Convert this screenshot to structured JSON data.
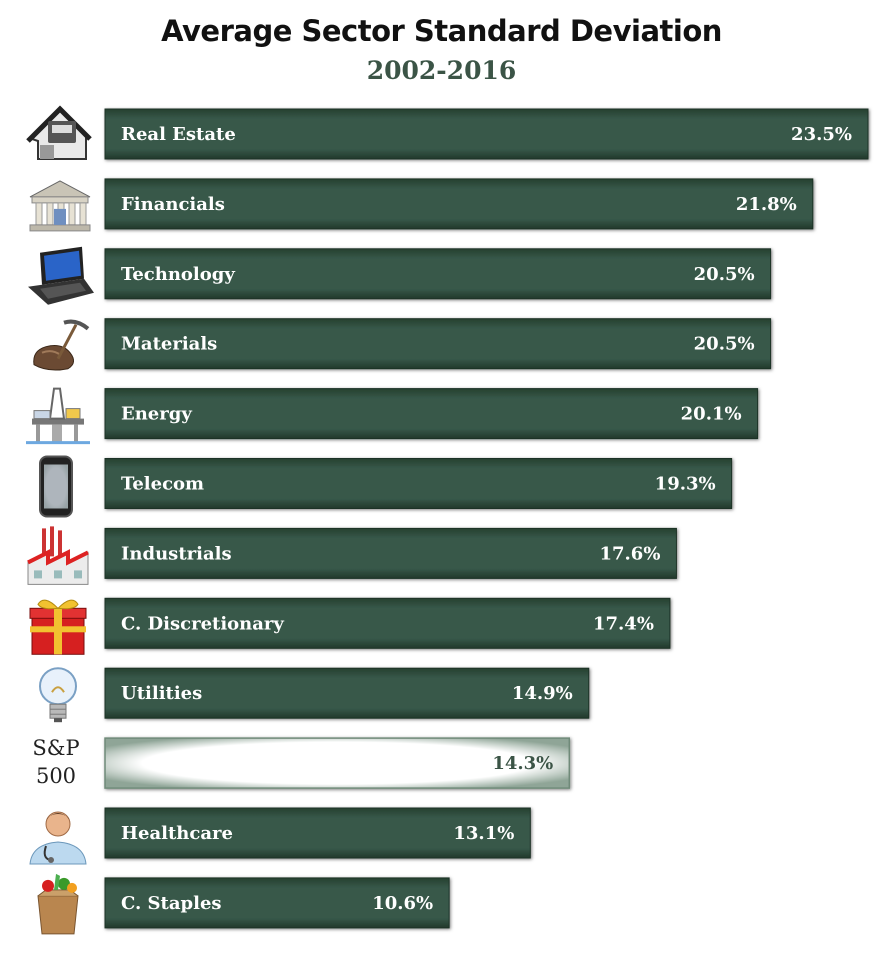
{
  "title": "Average Sector Standard Deviation",
  "subtitle": "2002-2016",
  "chart_data": {
    "type": "bar",
    "orientation": "horizontal",
    "title": "Average Sector Standard Deviation",
    "subtitle": "2002-2016",
    "xlim": [
      0,
      23.5
    ],
    "grid": false,
    "categories": [
      "Real Estate",
      "Financials",
      "Technology",
      "Materials",
      "Energy",
      "Telecom",
      "Industrials",
      "C. Discretionary",
      "Utilities",
      "S&P 500",
      "Healthcare",
      "C. Staples"
    ],
    "values": [
      23.5,
      21.8,
      20.5,
      20.5,
      20.1,
      19.3,
      17.6,
      17.4,
      14.9,
      14.3,
      13.1,
      10.6
    ],
    "value_labels": [
      "23.5%",
      "21.8%",
      "20.5%",
      "20.5%",
      "20.1%",
      "19.3%",
      "17.6%",
      "17.4%",
      "14.9%",
      "14.3%",
      "13.1%",
      "10.6%"
    ],
    "icons": [
      "house-icon",
      "bank-icon",
      "laptop-icon",
      "pickaxe-rock-icon",
      "oil-rig-icon",
      "smartphone-icon",
      "factory-icon",
      "gift-icon",
      "lightbulb-icon",
      "",
      "doctor-icon",
      "grocery-bag-icon"
    ],
    "highlight_category": "S&P 500",
    "colors": {
      "bar": "#31503f",
      "bar_text": "#ffffff",
      "highlight_bar": "#ffffff",
      "highlight_text": "#3b5446"
    }
  },
  "sp_label": {
    "line1": "S&P",
    "line2": "500"
  }
}
